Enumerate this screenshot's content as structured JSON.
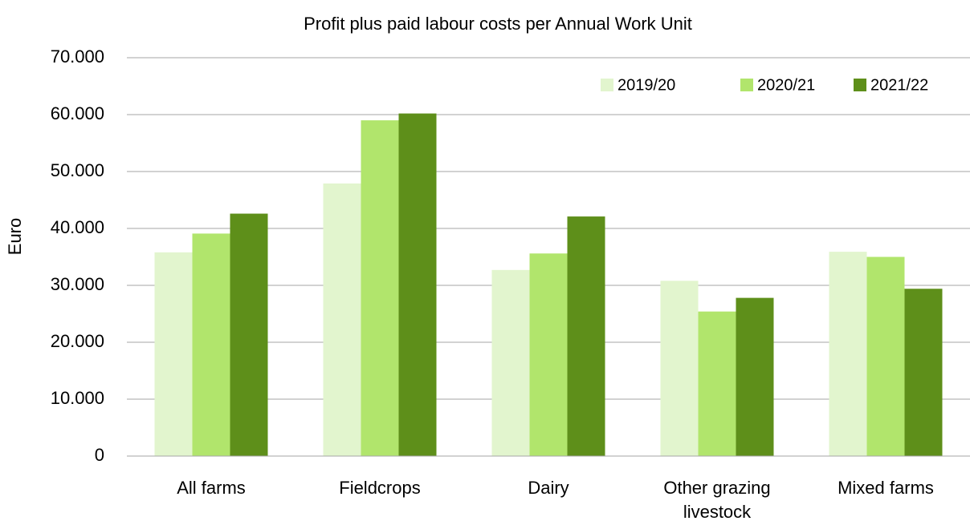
{
  "chart_data": {
    "type": "bar",
    "title": "Profit plus paid labour costs per Annual Work Unit",
    "y_label": "Euro",
    "categories": [
      "All farms",
      "Fieldcrops",
      "Dairy",
      "Other grazing livestock",
      "Mixed farms"
    ],
    "series": [
      {
        "name": "2019/20",
        "color": "#e2f5ce",
        "values": [
          35800,
          47900,
          32700,
          30800,
          35900
        ]
      },
      {
        "name": "2020/21",
        "color": "#b1e56c",
        "values": [
          39100,
          59000,
          35600,
          25400,
          35000
        ]
      },
      {
        "name": "2021/22",
        "color": "#5e8f1a",
        "values": [
          42600,
          60200,
          42100,
          27800,
          29400
        ]
      }
    ],
    "ylim": [
      0,
      70000
    ],
    "yticks": [
      0,
      {
        "value": 10000,
        "label": "10.000"
      },
      {
        "value": 20000,
        "label": "20.000"
      },
      {
        "value": 30000,
        "label": "30.000"
      },
      {
        "value": 40000,
        "label": "40.000"
      },
      {
        "value": 50000,
        "label": "50.000"
      },
      {
        "value": 60000,
        "label": "60.000"
      },
      {
        "value": 70000,
        "label": "70.000"
      }
    ],
    "grid": true,
    "legend": "top-right"
  }
}
